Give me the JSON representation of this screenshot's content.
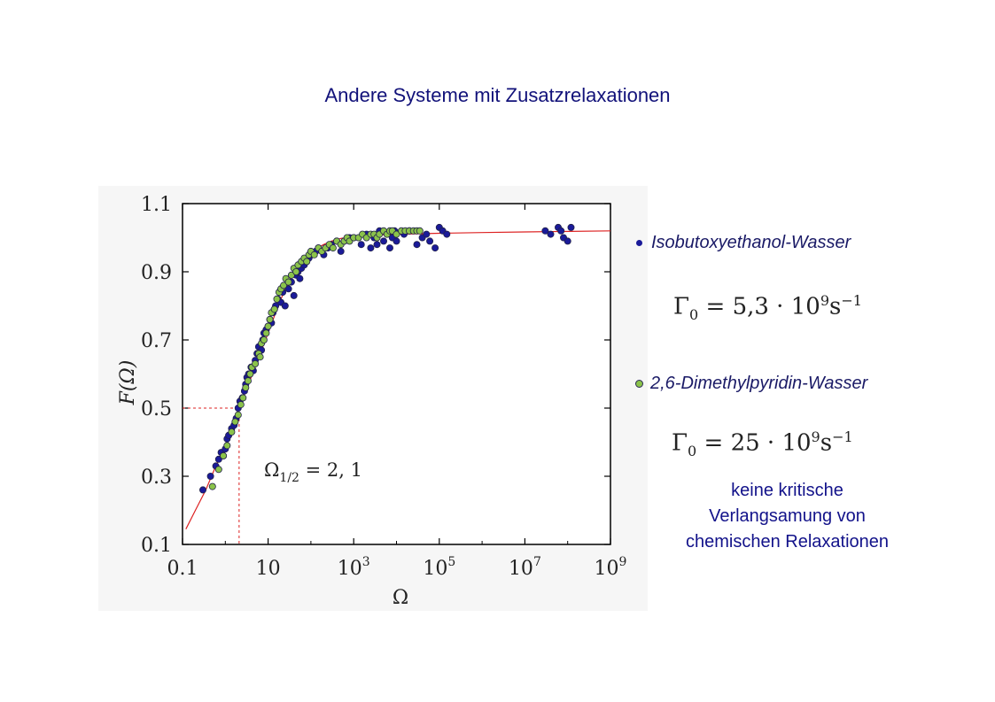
{
  "slide": {
    "title": "Andere Systeme mit Zusatzrelaxationen"
  },
  "legend": [
    {
      "label": "Isobutoxyethanol-Wasser",
      "color": "#1a1a99",
      "formula": {
        "lhs": "Γ",
        "sub": "0",
        "mantissa": "5,3",
        "exponent": "9",
        "unit": "s",
        "unit_exponent": "−1"
      }
    },
    {
      "label": "2,6-Dimethylpyridin-Wasser",
      "color": "#8bc34a",
      "formula": {
        "lhs": "Γ",
        "sub": "0",
        "mantissa": "25",
        "exponent": "9",
        "unit": "s",
        "unit_exponent": "−1"
      }
    }
  ],
  "note_lines": [
    "keine kritische",
    "Verlangsamung von",
    "chemischen Relaxationen"
  ],
  "annotation": {
    "symbol": "Ω",
    "sub": "1/2",
    "value": "2, 1"
  },
  "chart_data": {
    "type": "scatter",
    "xlabel": "Ω",
    "ylabel": "F(Ω)",
    "xscale": "log",
    "xlim": [
      0.1,
      1000000000
    ],
    "ylim": [
      0.1,
      1.1
    ],
    "xticks": [
      {
        "value": 0.1,
        "base": "0.1",
        "exp": ""
      },
      {
        "value": 10,
        "base": "10",
        "exp": ""
      },
      {
        "value": 1000,
        "base": "10",
        "exp": "3"
      },
      {
        "value": 100000,
        "base": "10",
        "exp": "5"
      },
      {
        "value": 10000000,
        "base": "10",
        "exp": "7"
      },
      {
        "value": 1000000000,
        "base": "10",
        "exp": "9"
      }
    ],
    "yticks": [
      {
        "value": 0.1,
        "label": "0.1"
      },
      {
        "value": 0.3,
        "label": "0.3"
      },
      {
        "value": 0.5,
        "label": "0.5"
      },
      {
        "value": 0.7,
        "label": "0.7"
      },
      {
        "value": 0.9,
        "label": "0.9"
      },
      {
        "value": 1.1,
        "label": "1.1"
      }
    ],
    "reference": {
      "x": 2.1,
      "y": 0.5,
      "color": "#dd2222"
    },
    "fit_curve": {
      "color": "#dd2222",
      "x": [
        0.12,
        0.2,
        0.35,
        0.6,
        1,
        1.5,
        2.1,
        3,
        5,
        7,
        10,
        15,
        20,
        30,
        50,
        70,
        100,
        200,
        300,
        500,
        1000,
        3000,
        10000,
        100000,
        1000000,
        10000000,
        1000000000
      ],
      "y": [
        0.145,
        0.2,
        0.26,
        0.33,
        0.39,
        0.445,
        0.5,
        0.55,
        0.62,
        0.67,
        0.72,
        0.78,
        0.82,
        0.87,
        0.92,
        0.945,
        0.96,
        0.98,
        0.99,
        0.998,
        1.004,
        1.008,
        1.01,
        1.013,
        1.015,
        1.017,
        1.02
      ]
    },
    "series": [
      {
        "name": "Isobutoxyethanol-Wasser",
        "color": "#1a1a99",
        "x": [
          0.3,
          0.45,
          0.6,
          0.7,
          0.8,
          0.9,
          1,
          1.1,
          1.2,
          1.4,
          1.6,
          1.8,
          2,
          2.2,
          2.5,
          2.8,
          3,
          3.2,
          3.5,
          4,
          4.5,
          5,
          5.5,
          6,
          7,
          7.5,
          8,
          9,
          10,
          11,
          12,
          13,
          14,
          15,
          17,
          20,
          22,
          25,
          30,
          35,
          40,
          45,
          50,
          55,
          60,
          70,
          80,
          90,
          100,
          130,
          150,
          200,
          250,
          300,
          400,
          500,
          600,
          800,
          1000,
          1500,
          2000,
          2500,
          3000,
          3500,
          4000,
          5000,
          6000,
          7000,
          8000,
          9000,
          10000,
          15000,
          20000,
          30000,
          40000,
          50000,
          60000,
          80000,
          100000,
          120000,
          150000,
          30000000,
          40000000,
          60000000,
          70000000,
          80000000,
          100000000,
          120000000
        ],
        "y": [
          0.26,
          0.3,
          0.33,
          0.35,
          0.37,
          0.36,
          0.38,
          0.41,
          0.42,
          0.44,
          0.45,
          0.47,
          0.5,
          0.52,
          0.53,
          0.55,
          0.57,
          0.59,
          0.6,
          0.62,
          0.61,
          0.64,
          0.66,
          0.68,
          0.67,
          0.7,
          0.72,
          0.73,
          0.74,
          0.76,
          0.75,
          0.78,
          0.79,
          0.8,
          0.82,
          0.81,
          0.84,
          0.8,
          0.85,
          0.87,
          0.83,
          0.89,
          0.9,
          0.88,
          0.91,
          0.92,
          0.93,
          0.94,
          0.95,
          0.96,
          0.97,
          0.95,
          0.97,
          0.98,
          0.99,
          0.96,
          0.99,
          1,
          1.0,
          0.98,
          1.01,
          0.97,
          1.0,
          0.98,
          1.02,
          0.99,
          1.01,
          0.97,
          1.0,
          1.02,
          0.99,
          1.01,
          1.02,
          0.98,
          1.0,
          1.01,
          0.99,
          0.97,
          1.03,
          1.02,
          1.01,
          1.02,
          1.01,
          1.03,
          1.02,
          1.0,
          0.99,
          1.03
        ]
      },
      {
        "name": "2,6-Dimethylpyridin-Wasser",
        "color": "#8bc34a",
        "x": [
          0.5,
          0.7,
          0.9,
          1.1,
          1.4,
          1.7,
          2,
          2.3,
          2.6,
          3,
          3.4,
          3.8,
          4.2,
          5,
          6,
          6.5,
          7,
          8,
          9,
          10,
          11,
          12,
          14,
          16,
          18,
          20,
          23,
          26,
          30,
          35,
          40,
          45,
          50,
          60,
          70,
          80,
          90,
          100,
          120,
          150,
          180,
          220,
          270,
          330,
          400,
          500,
          600,
          700,
          800,
          1000,
          1300,
          1600,
          2000,
          2500,
          3000,
          3500,
          4000,
          5000,
          6000,
          7000,
          8000,
          10000,
          13000,
          16000,
          20000,
          25000,
          30000,
          35000
        ],
        "y": [
          0.27,
          0.32,
          0.36,
          0.39,
          0.43,
          0.46,
          0.48,
          0.51,
          0.53,
          0.56,
          0.58,
          0.6,
          0.62,
          0.63,
          0.66,
          0.65,
          0.69,
          0.7,
          0.72,
          0.74,
          0.76,
          0.78,
          0.79,
          0.82,
          0.84,
          0.85,
          0.86,
          0.88,
          0.87,
          0.89,
          0.91,
          0.9,
          0.92,
          0.93,
          0.94,
          0.93,
          0.95,
          0.96,
          0.95,
          0.97,
          0.96,
          0.97,
          0.98,
          0.97,
          0.99,
          0.98,
          0.99,
          1.0,
          0.99,
          1.0,
          1.0,
          1.01,
          1.0,
          1.01,
          1.01,
          1.0,
          1.01,
          1.02,
          1.01,
          1.02,
          1.02,
          1.01,
          1.02,
          1.02,
          1.02,
          1.02,
          1.02,
          1.02
        ]
      }
    ]
  }
}
